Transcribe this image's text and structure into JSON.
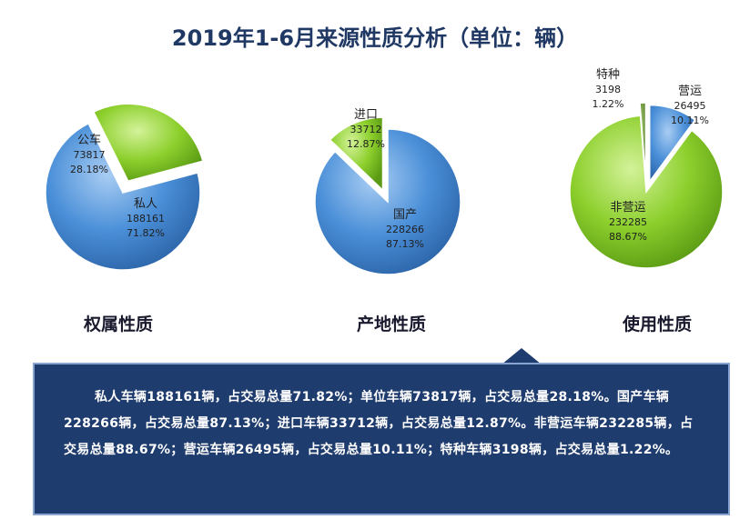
{
  "title": "2019年1-6月来源性质分析（单位：辆）",
  "colors": {
    "blue": "#4a8fd8",
    "green": "#8ccf2c",
    "navy": "#1f3c6e"
  },
  "chart_data": [
    {
      "type": "pie",
      "caption": "权属性质",
      "slices": [
        {
          "name": "私人",
          "value": 188161,
          "percent": "71.82%",
          "color": "#4a8fd8"
        },
        {
          "name": "公车",
          "value": 73817,
          "percent": "28.18%",
          "color": "#8ccf2c"
        }
      ]
    },
    {
      "type": "pie",
      "caption": "产地性质",
      "slices": [
        {
          "name": "国产",
          "value": 228266,
          "percent": "87.13%",
          "color": "#4a8fd8"
        },
        {
          "name": "进口",
          "value": 33712,
          "percent": "12.87%",
          "color": "#8ccf2c"
        }
      ]
    },
    {
      "type": "pie",
      "caption": "使用性质",
      "slices": [
        {
          "name": "营运",
          "value": 26495,
          "percent": "10.11%",
          "color": "#4a8fd8"
        },
        {
          "name": "非营运",
          "value": 232285,
          "percent": "88.67%",
          "color": "#8ccf2c"
        },
        {
          "name": "特种",
          "value": 3198,
          "percent": "1.22%",
          "color": "#5a8a2a"
        }
      ]
    }
  ],
  "summary": "私人车辆188161辆，占交易总量71.82%；单位车辆73817辆，占交易总量28.18%。国产车辆228266辆，占交易总量87.13%；进口车辆33712辆，占交易总量12.87%。非营运车辆232285辆，占交易总量88.67%；营运车辆26495辆，占交易总量10.11%；特种车辆3198辆，占交易总量1.22%。"
}
